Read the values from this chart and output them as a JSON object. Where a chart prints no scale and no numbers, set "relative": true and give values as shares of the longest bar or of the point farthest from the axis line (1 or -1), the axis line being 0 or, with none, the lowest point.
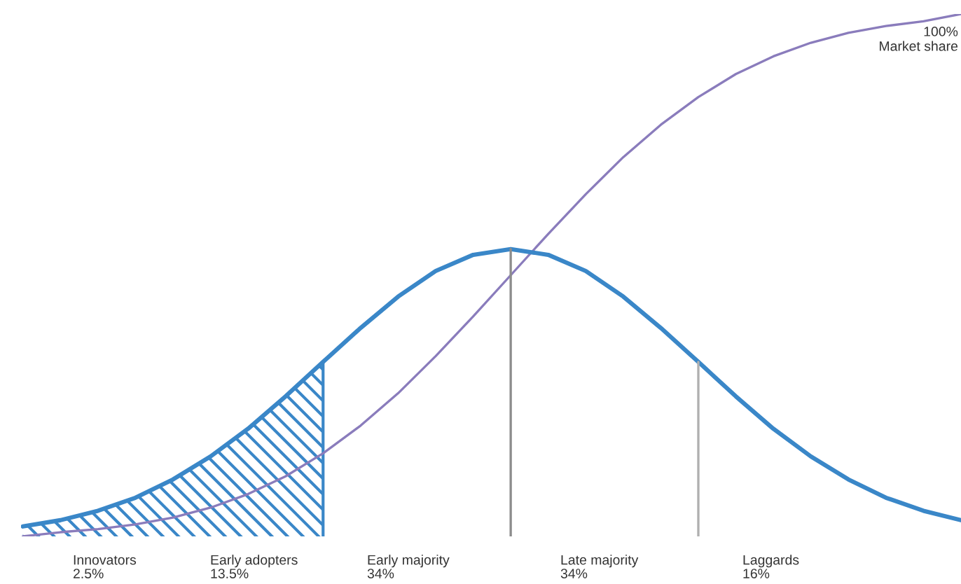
{
  "chart_data": {
    "type": "line",
    "relative": true,
    "categories": [
      null,
      null,
      null,
      null,
      null,
      null,
      null,
      null,
      null,
      null,
      null,
      null,
      null,
      null,
      null,
      null,
      null,
      null,
      null,
      null,
      null,
      null,
      null,
      null,
      null,
      null
    ],
    "series": [
      {
        "type": "area",
        "color": "#3a87c8",
        "values": [
          0.019,
          0.031,
          0.049,
          0.074,
          0.109,
          0.153,
          0.206,
          0.268,
          0.334,
          null,
          null,
          null,
          null,
          null,
          null,
          null,
          null,
          null,
          null,
          null,
          null,
          null,
          null,
          null,
          null,
          null
        ]
      },
      {
        "color": "#8a7cbc",
        "values": [
          0.0,
          0.008,
          0.014,
          0.023,
          0.036,
          0.055,
          0.081,
          0.115,
          0.159,
          0.212,
          0.274,
          0.345,
          0.421,
          0.5,
          0.579,
          0.655,
          0.726,
          0.788,
          0.841,
          0.885,
          0.919,
          0.945,
          0.964,
          0.977,
          0.986,
          1.0
        ]
      },
      {
        "color": "#3a87c8",
        "values": [
          0.019,
          0.031,
          0.049,
          0.074,
          0.109,
          0.153,
          0.206,
          0.268,
          0.334,
          0.399,
          0.459,
          0.508,
          0.539,
          0.55,
          0.539,
          0.508,
          0.459,
          0.399,
          0.334,
          0.268,
          0.206,
          0.153,
          0.109,
          0.074,
          0.049,
          0.031
        ]
      }
    ],
    "annotations": [
      "100%\nMarket share",
      "Innovators\n2.5%",
      "Early adopters\n13.5%",
      "Early majority\n34%",
      "Late majority\n34%",
      "Laggards\n16%"
    ]
  }
}
